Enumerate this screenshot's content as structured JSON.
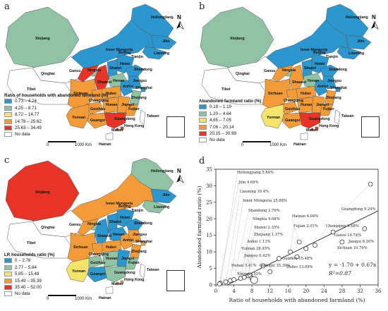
{
  "panels": {
    "a": {
      "letter": "a",
      "legend_title": "Ratio of households with abandoned farmland (%)",
      "classes": [
        {
          "label": "0.73 – 4.24",
          "color": "#2c96cf"
        },
        {
          "label": "4.25 – 8.71",
          "color": "#8fc3a3"
        },
        {
          "label": "8.72 – 14.77",
          "color": "#f4e46c"
        },
        {
          "label": "14.78 – 25.62",
          "color": "#f29b38"
        },
        {
          "label": "25.63 – 34.49",
          "color": "#e63426"
        },
        {
          "label": "No data",
          "color": "#ffffff"
        }
      ],
      "scale": "1000 Km",
      "scale_zero": "0"
    },
    "b": {
      "letter": "b",
      "legend_title": "Abandoned farmland ratio (%)",
      "classes": [
        {
          "label": "0.18 – 1.19",
          "color": "#2c96cf"
        },
        {
          "label": "1.20 – 4.64",
          "color": "#8fc3a3"
        },
        {
          "label": "4.65 – 7.05",
          "color": "#f4e46c"
        },
        {
          "label": "7.06 – 20.14",
          "color": "#f29b38"
        },
        {
          "label": "20.15 – 30.99",
          "color": "#e63426"
        },
        {
          "label": "No data",
          "color": "#ffffff"
        }
      ],
      "scale": "1000 Km",
      "scale_zero": "0"
    },
    "c": {
      "letter": "c",
      "legend_title": "LR households ratio (%)",
      "classes": [
        {
          "label": "0 – 2.76",
          "color": "#2c96cf"
        },
        {
          "label": "2.77 – 5.84",
          "color": "#8fc3a3"
        },
        {
          "label": "5.85 – 15.48",
          "color": "#f4e46c"
        },
        {
          "label": "15.49 – 35.39",
          "color": "#f29b38"
        },
        {
          "label": "35.40 – 52.00",
          "color": "#e63426"
        },
        {
          "label": "No data",
          "color": "#ffffff"
        }
      ],
      "scale": "1000 Km",
      "scale_zero": "0"
    }
  },
  "north_label": "N",
  "provinces": [
    "Heilongjiang",
    "Jilin",
    "Inner Mongoria",
    "Liaoning",
    "Xinjiang",
    "Beijing",
    "Tianjin",
    "Hebei",
    "Ningxia",
    "Shandong",
    "Gansu",
    "Shanxi",
    "Qinghai",
    "Shaanxi",
    "Henan",
    "Jiangsu",
    "Anhui",
    "Shanghai",
    "Tibet",
    "Sichuan",
    "Hubei",
    "Zhejiang",
    "Chongqing",
    "Hunan",
    "Jiangxi",
    "Guizhou",
    "Fujian",
    "Yunnan",
    "Taiwan",
    "Guangxi",
    "Guangdong",
    "Hong Kong",
    "Macao",
    "Hainan"
  ],
  "province_colors": {
    "a": {
      "Heilongjiang": "#2c96cf",
      "Jilin": "#2c96cf",
      "Inner Mongoria": "#2c96cf",
      "Liaoning": "#2c96cf",
      "Xinjiang": "#8fc3a3",
      "Qinghai": "#ffffff",
      "Tibet": "#ffffff",
      "Gansu": "#e63426",
      "Ningxia": "#8fc3a3",
      "Shaanxi": "#e63426",
      "Shanxi": "#2c96cf",
      "Hebei": "#2c96cf",
      "Beijing": "#2c96cf",
      "Tianjin": "#2c96cf",
      "Shandong": "#2c96cf",
      "Henan": "#8fc3a3",
      "Jiangsu": "#2c96cf",
      "Anhui": "#2c96cf",
      "Shanghai": "#2c96cf",
      "Sichuan": "#f29b38",
      "Chongqing": "#f29b38",
      "Hubei": "#f29b38",
      "Zhejiang": "#8fc3a3",
      "Hunan": "#f29b38",
      "Jiangxi": "#f29b38",
      "Guizhou": "#f29b38",
      "Fujian": "#f29b38",
      "Yunnan": "#f29b38",
      "Guangxi": "#f29b38",
      "Guangdong": "#e63426",
      "Hong Kong": "#e63426",
      "Macao": "#e63426",
      "Hainan": "#ffffff",
      "Taiwan": "#ffffff"
    },
    "b": {
      "Heilongjiang": "#2c96cf",
      "Jilin": "#2c96cf",
      "Inner Mongoria": "#2c96cf",
      "Liaoning": "#2c96cf",
      "Xinjiang": "#8fc3a3",
      "Qinghai": "#ffffff",
      "Tibet": "#ffffff",
      "Gansu": "#f29b38",
      "Ningxia": "#8fc3a3",
      "Shaanxi": "#f29b38",
      "Shanxi": "#2c96cf",
      "Hebei": "#2c96cf",
      "Beijing": "#2c96cf",
      "Tianjin": "#2c96cf",
      "Shandong": "#2c96cf",
      "Henan": "#8fc3a3",
      "Jiangsu": "#2c96cf",
      "Anhui": "#2c96cf",
      "Shanghai": "#2c96cf",
      "Sichuan": "#f29b38",
      "Chongqing": "#f29b38",
      "Hubei": "#f29b38",
      "Zhejiang": "#f29b38",
      "Hunan": "#f29b38",
      "Jiangxi": "#f29b38",
      "Guizhou": "#f29b38",
      "Fujian": "#f29b38",
      "Yunnan": "#f4e46c",
      "Guangxi": "#f29b38",
      "Guangdong": "#e63426",
      "Hong Kong": "#e63426",
      "Macao": "#e63426",
      "Hainan": "#ffffff",
      "Taiwan": "#ffffff"
    },
    "c": {
      "Heilongjiang": "#8fc3a3",
      "Jilin": "#2c96cf",
      "Inner Mongoria": "#f29b38",
      "Liaoning": "#8fc3a3",
      "Xinjiang": "#e63426",
      "Qinghai": "#ffffff",
      "Tibet": "#ffffff",
      "Gansu": "#f29b38",
      "Ningxia": "#8fc3a3",
      "Shaanxi": "#2c96cf",
      "Shanxi": "#2c96cf",
      "Hebei": "#2c96cf",
      "Beijing": "#2c96cf",
      "Tianjin": "#2c96cf",
      "Shandong": "#2c96cf",
      "Henan": "#2c96cf",
      "Jiangsu": "#f29b38",
      "Anhui": "#f29b38",
      "Shanghai": "#f29b38",
      "Sichuan": "#f29b38",
      "Chongqing": "#f29b38",
      "Hubei": "#f29b38",
      "Zhejiang": "#f29b38",
      "Hunan": "#8fc3a3",
      "Jiangxi": "#2c96cf",
      "Guizhou": "#8fc3a3",
      "Fujian": "#8fc3a3",
      "Yunnan": "#f4e46c",
      "Guangxi": "#2c96cf",
      "Guangdong": "#8fc3a3",
      "Hong Kong": "#f29b38",
      "Macao": "#f29b38",
      "Hainan": "#ffffff",
      "Taiwan": "#ffffff"
    }
  },
  "chart_data": {
    "type": "scatter",
    "panel_letter": "d",
    "xlabel": "Ratio of households with abandoned farmland (%)",
    "ylabel": "Abandoned farmland ratio (%)",
    "xlim": [
      0,
      36
    ],
    "ylim": [
      0,
      35
    ],
    "xticks": [
      "0",
      "4",
      "8",
      "12",
      "16",
      "20",
      "24",
      "28",
      "32",
      "36"
    ],
    "yticks": [
      "0",
      "5",
      "10",
      "15",
      "20",
      "25",
      "30",
      "35"
    ],
    "points": [
      {
        "name": "Heilongjiang 5.84%",
        "x": 1.0,
        "y": 0.5
      },
      {
        "name": "Jilin 4.69%",
        "x": 0.8,
        "y": 0.3
      },
      {
        "name": "Liaoning 10.4%",
        "x": 2.2,
        "y": 0.9
      },
      {
        "name": "Inner Mongoria 25.88%",
        "x": 3.2,
        "y": 1.3
      },
      {
        "name": "Shandong 2.76%",
        "x": 4.0,
        "y": 1.6
      },
      {
        "name": "Ningxia 4.08%",
        "x": 5.5,
        "y": 2.0
      },
      {
        "name": "Shanxi 2.35%",
        "x": 6.3,
        "y": 2.3
      },
      {
        "name": "Zhejiang 1.37%",
        "x": 7.2,
        "y": 2.8
      },
      {
        "name": "Anhui 1.13%",
        "x": 7.6,
        "y": 3.0
      },
      {
        "name": "Henan 5.41%",
        "x": 8.0,
        "y": 2.0
      },
      {
        "name": "Xinjiang 52%",
        "x": 8.5,
        "y": 1.5
      },
      {
        "name": "Yunnan 28.45%",
        "x": 10.5,
        "y": 5.8
      },
      {
        "name": "Jiangsu 0.42%",
        "x": 12.0,
        "y": 4.0
      },
      {
        "name": "Guangxi 35.39%",
        "x": 14.0,
        "y": 8.0
      },
      {
        "name": "Fujian 2.01%",
        "x": 16.5,
        "y": 10.0
      },
      {
        "name": "Hainan 4.04%",
        "x": 18.5,
        "y": 13.0
      },
      {
        "name": "Guizhou 15.48%",
        "x": 18.0,
        "y": 8.5
      },
      {
        "name": "Hubei 13.09%",
        "x": 20.0,
        "y": 11.0
      },
      {
        "name": "Chongqing 9.68%",
        "x": 22.0,
        "y": 12.0
      },
      {
        "name": "Gansu 14.74%",
        "x": 26.0,
        "y": 16.0
      },
      {
        "name": "Sichuan 10.70%",
        "x": 28.0,
        "y": 13.0
      },
      {
        "name": "Jiangxi 8.20%",
        "x": 33.0,
        "y": 17.0
      },
      {
        "name": "Guangdong 9.24%",
        "x": 34.3,
        "y": 30.5
      }
    ],
    "fit": {
      "slope": 0.67,
      "intercept": -1.7,
      "label": "y = -1.70 + 0.67x",
      "r2": "R²=0.87"
    }
  }
}
